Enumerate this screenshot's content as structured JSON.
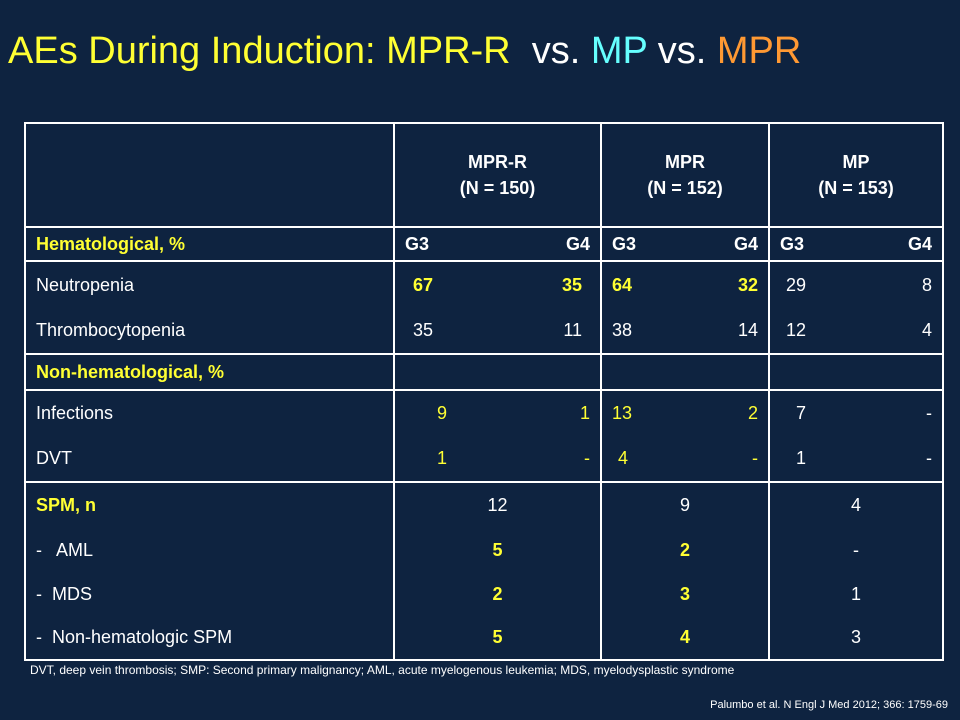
{
  "title": {
    "part1": "AEs During Induction: MPR-R",
    "part2": "vs.",
    "part3": "MP",
    "part4": "vs.",
    "part5": "MPR"
  },
  "table": {
    "headers": [
      {
        "name": "MPR-R",
        "n": "(N = 150)"
      },
      {
        "name": "MPR",
        "n": "(N = 152)"
      },
      {
        "name": "MP",
        "n": "(N = 153)"
      }
    ],
    "hematological_label": "Hematological, %",
    "grade_labels": [
      "G3",
      "G4"
    ],
    "hematological_rows": [
      {
        "label": "Neutropenia",
        "values": [
          [
            "67",
            "35"
          ],
          [
            "64",
            "32"
          ],
          [
            "29",
            "8"
          ]
        ]
      },
      {
        "label": "Thrombocytopenia",
        "values": [
          [
            "35",
            "11"
          ],
          [
            "38",
            "14"
          ],
          [
            "12",
            "4"
          ]
        ]
      }
    ],
    "nonhem_label": "Non-hematological, %",
    "nonhem_rows": [
      {
        "label": "Infections",
        "values": [
          [
            "9",
            "1"
          ],
          [
            "13",
            "2"
          ],
          [
            "7",
            "-"
          ]
        ]
      },
      {
        "label": "DVT",
        "values": [
          [
            "1",
            "-"
          ],
          [
            "4",
            "-"
          ],
          [
            "1",
            "-"
          ]
        ]
      }
    ],
    "spm_label": "SPM, n",
    "spm_values": [
      "12",
      "9",
      "4"
    ],
    "spm_rows": [
      {
        "label": "-   AML",
        "values": [
          "5",
          "2",
          "-"
        ]
      },
      {
        "label": "-  MDS",
        "values": [
          "2",
          "3",
          "1"
        ]
      },
      {
        "label": "-  Non-hematologic SPM",
        "values": [
          "5",
          "4",
          "3"
        ]
      }
    ]
  },
  "footnote": "DVT, deep vein thrombosis; SMP: Second primary malignancy; AML, acute myelogenous leukemia; MDS, myelodysplastic syndrome",
  "citation": "Palumbo et al. N Engl J Med 2012; 366: 1759-69",
  "colors": {
    "background": "#0e2340",
    "highlight_yellow": "#ffff33",
    "mp_cyan": "#66ffff",
    "mpr_orange": "#ff9933"
  }
}
